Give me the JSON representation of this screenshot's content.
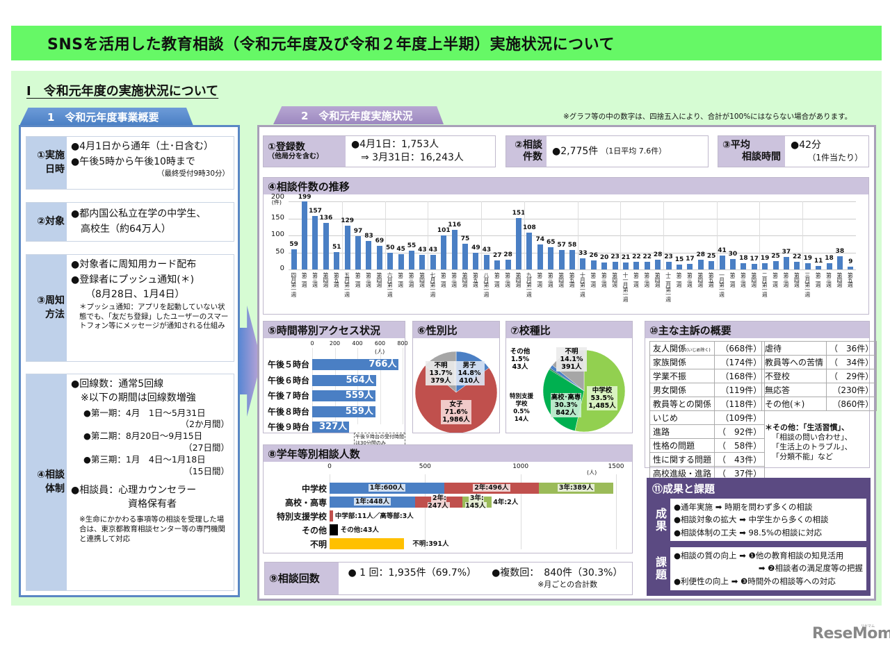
{
  "title": "SNSを活用した教育相談（令和元年度及び令和２年度上半期）実施状況について",
  "section_heading": "Ⅰ　令和元年度の実施状況について",
  "tab1": "1　令和元年度事業概要",
  "tab2": "2　令和元年度実施状況",
  "rounding_note": "※グラフ等の中の数字は、四捨五入により、合計が100%にはならない場合があります。",
  "overview": {
    "rows": [
      {
        "label": "①実施\n日時",
        "lines": [
          "●4月1日から通年（土･日含む）",
          "●午後5時から午後10時まで"
        ],
        "note": "（最終受付9時30分）"
      },
      {
        "label": "②対象",
        "lines": [
          "●都内国公私立在学の中学生、",
          "　高校生（約64万人）"
        ]
      },
      {
        "label": "③周知\n方法",
        "lines": [
          "●対象者に周知用カード配布",
          "●登録者にプッシュ通知(＊)",
          "　　（8月28日、1月4日）"
        ],
        "note": "＊プッシュ通知：アプリを起動していない状態でも、「友だち登録」したユーザーのスマートフォン等にメッセージが通知される仕組み"
      },
      {
        "label": "④相談\n体制",
        "lines": [
          "●回線数：通常5回線",
          "　※以下の期間は回線数増強"
        ],
        "periods": [
          {
            "text": "●第一期：4月　1日～5月31日",
            "dur": "（2か月間）"
          },
          {
            "text": "●第二期：8月20日～9月15日",
            "dur": "（27日間）"
          },
          {
            "text": "●第三期：1月　4日～1月18日",
            "dur": "（15日間）"
          }
        ],
        "counselor": "●相談員：心理カウンセラー",
        "counselor2": "資格保有者",
        "note": "※生命にかかわる事項等の相談を受理した場合は、東京都教育相談センター等の専門機関と連携して対応"
      }
    ]
  },
  "stats": {
    "registrations": {
      "label1": "①登録数",
      "label2": "（他局分を含む）",
      "line1": "●4月1日：1,753人",
      "line2": "　⇒ 3月31日：16,243人"
    },
    "consultations": {
      "label1": "②相談",
      "label2": "件数",
      "value": "●2,775件",
      "sub": "（1日平均 7.6件）"
    },
    "avg_time": {
      "label1": "③平均",
      "label2": "相談時間",
      "value": "●42分",
      "sub": "（1件当たり）"
    }
  },
  "weekly": {
    "title": "④相談件数の推移",
    "unit": "(件)"
  },
  "hourly": {
    "title": "⑤時間帯別アクセス状況",
    "unit": "(人)",
    "note": "午後９時台の受付時間は30分間のみ"
  },
  "gender": {
    "title": "⑥性別比"
  },
  "school": {
    "title": "⑦校種比"
  },
  "grade": {
    "title": "⑧学年等別相談人数",
    "unit": "(人)"
  },
  "count": {
    "title": "⑨相談回数",
    "once": "● 1 回：1,935件（69.7%）",
    "multi": "●複数回：　840件（30.3%）",
    "note": "※月ごとの合計数"
  },
  "complaints": {
    "title": "⑩主な主訴の概要",
    "left": [
      {
        "name": "友人関係",
        "sub": "(いじめ除く)",
        "n": "（668件）"
      },
      {
        "name": "家族関係",
        "n": "（174件）"
      },
      {
        "name": "学業不振",
        "n": "（168件）"
      },
      {
        "name": "男女関係",
        "n": "（119件）"
      },
      {
        "name": "教員等との関係",
        "n": "（118件）"
      },
      {
        "name": "いじめ",
        "n": "（109件）"
      },
      {
        "name": "進路",
        "n": "（　92件）"
      },
      {
        "name": "性格の問題",
        "n": "（　58件）"
      },
      {
        "name": "性に関する問題",
        "n": "（　43件）"
      },
      {
        "name": "高校進級・進路",
        "n": "（　37件）"
      }
    ],
    "right": [
      {
        "name": "虐待",
        "n": "（　36件）"
      },
      {
        "name": "教員等への苦情",
        "n": "（　34件）"
      },
      {
        "name": "不登校",
        "n": "（　29件）"
      },
      {
        "name": "無応答",
        "n": "（230件）"
      },
      {
        "name": "その他(＊)",
        "n": "（860件）"
      }
    ],
    "note": [
      "＊その他：「生活習慣」、",
      "「相談の問い合わせ」、",
      "「生活上のトラブル」、",
      "「分類不能」など"
    ]
  },
  "outcomes": {
    "title": "⑪成果と課題",
    "results_label": "成果",
    "results": [
      "●通年実施 ➡ 時期を問わず多くの相談",
      "●相談対象の拡大 ➡ 中学生から多くの相談",
      "●相談体制の工夫 ➡ 98.5%の相談に対応"
    ],
    "issues_label": "課題",
    "issues": [
      "●相談の質の向上 ➡ ❶他の教育相談の知見活用",
      "➡ ❷相談者の満足度等の把握",
      "●利便性の向上 ➡ ❸時間外の相談等への対応"
    ]
  },
  "logo": "ReseMom",
  "logo_kana": "リセマム",
  "colors": {
    "title_green": "#66f866",
    "bg_green": "#d6fcd3",
    "blue": "#4a7fc4",
    "red": "#c0504d",
    "green": "#9bbb59",
    "lightgreen": "#92d050",
    "darkgreen": "#00b050",
    "gray": "#a6a6a6",
    "yellow": "#ffc000",
    "lavender": "#ccc3dd",
    "purple": "#5b4a82"
  },
  "chart_data": [
    {
      "type": "bar",
      "title": "④相談件数の推移",
      "ylabel": "(件)",
      "ylim": [
        0,
        200
      ],
      "yticks": [
        0,
        50,
        100,
        150,
        200
      ],
      "months": [
        "四月",
        "五月",
        "六月",
        "七月",
        "八月",
        "九月",
        "十月",
        "十一月",
        "十二月",
        "一月",
        "二月",
        "三月"
      ],
      "weeks_per_month": [
        5,
        4,
        4,
        5,
        4,
        5,
        4,
        4,
        5,
        4,
        4,
        5
      ],
      "values": [
        59,
        199,
        157,
        136,
        51,
        129,
        97,
        83,
        69,
        50,
        45,
        55,
        43,
        43,
        101,
        116,
        75,
        49,
        43,
        27,
        28,
        151,
        108,
        74,
        65,
        57,
        58,
        33,
        26,
        20,
        23,
        21,
        22,
        22,
        28,
        23,
        15,
        17,
        28,
        25,
        41,
        30,
        18,
        17,
        19,
        25,
        37,
        22,
        19,
        11,
        18,
        38,
        9
      ],
      "week_labels": [
        "第一週",
        "第二週",
        "第三週",
        "第四週",
        "第五週"
      ]
    },
    {
      "type": "bar",
      "orientation": "horizontal",
      "title": "⑤時間帯別アクセス状況",
      "xlabel": "(人)",
      "xlim": [
        0,
        800
      ],
      "xticks": [
        0,
        200,
        400,
        600,
        800
      ],
      "categories": [
        "午後５時台",
        "午後６時台",
        "午後７時台",
        "午後８時台",
        "午後９時台"
      ],
      "values": [
        766,
        564,
        559,
        559,
        327
      ],
      "value_labels": [
        "766人",
        "564人",
        "559人",
        "559人",
        "327人"
      ],
      "annotation": "午後９時台の受付時間は30分間のみ"
    },
    {
      "type": "pie",
      "title": "⑥性別比",
      "slices": [
        {
          "label": "男子",
          "pct": 14.8,
          "count": 410,
          "color": "#4a7fc4",
          "text": [
            "男子",
            "14.8%",
            "410人"
          ]
        },
        {
          "label": "女子",
          "pct": 71.6,
          "count": 1986,
          "color": "#c0504d",
          "text": [
            "女子",
            "71.6%",
            "1,986人"
          ]
        },
        {
          "label": "不明",
          "pct": 13.7,
          "count": 379,
          "color": "#a6a6a6",
          "text": [
            "不明",
            "13.7%",
            "379人"
          ]
        }
      ]
    },
    {
      "type": "pie",
      "title": "⑦校種比",
      "slices": [
        {
          "label": "中学校",
          "pct": 53.5,
          "count": 1485,
          "color": "#92d050",
          "text": [
            "中学校",
            "53.5%",
            "1,485人"
          ]
        },
        {
          "label": "高校・高専",
          "pct": 30.3,
          "count": 842,
          "color": "#00b050",
          "text": [
            "高校･高専",
            "30.3%",
            "842人"
          ]
        },
        {
          "label": "特別支援学校",
          "pct": 0.5,
          "count": 14,
          "color": "#1f6e3a",
          "text": [
            "特別支援",
            "学校",
            "0.5%",
            "14人"
          ]
        },
        {
          "label": "その他",
          "pct": 1.5,
          "count": 43,
          "color": "#4a7fc4",
          "text": [
            "その他",
            "1.5%",
            "43人"
          ]
        },
        {
          "label": "不明",
          "pct": 14.1,
          "count": 391,
          "color": "#a6a6a6",
          "text": [
            "不明",
            "14.1%",
            "391人"
          ]
        }
      ]
    },
    {
      "type": "bar",
      "orientation": "horizontal",
      "stacked": true,
      "title": "⑧学年等別相談人数",
      "xlabel": "(人)",
      "xlim": [
        0,
        1500
      ],
      "xticks": [
        0,
        500,
        1000,
        1500
      ],
      "categories": [
        "中学校",
        "高校・高専",
        "特別支援学校",
        "その他",
        "不明"
      ],
      "rows": [
        {
          "category": "中学校",
          "segments": [
            {
              "name": "1年",
              "value": 600,
              "color": "#4a7fc4",
              "label": "1年:600人"
            },
            {
              "name": "2年",
              "value": 496,
              "color": "#c0504d",
              "label": "2年:496人"
            },
            {
              "name": "3年",
              "value": 389,
              "color": "#9bbb59",
              "label": "3年:389人"
            }
          ]
        },
        {
          "category": "高校・高専",
          "segments": [
            {
              "name": "1年",
              "value": 448,
              "color": "#4a7fc4",
              "label": "1年:448人"
            },
            {
              "name": "2年",
              "value": 247,
              "color": "#c0504d",
              "label": "2年:\n247人"
            },
            {
              "name": "3年",
              "value": 145,
              "color": "#9bbb59",
              "label": "3年:\n145人"
            },
            {
              "name": "4年",
              "value": 2,
              "color": "#9bbb59",
              "label": "4年:2人"
            }
          ]
        },
        {
          "category": "特別支援学校",
          "segments": [
            {
              "name": "中学部",
              "value": 11,
              "color": "#c0504d"
            },
            {
              "name": "高等部",
              "value": 3,
              "color": "#c0504d"
            }
          ],
          "label": "中学部:11人／高等部:3人"
        },
        {
          "category": "その他",
          "segments": [
            {
              "name": "その他",
              "value": 43,
              "color": "#000000"
            }
          ],
          "label": "その他:43人"
        },
        {
          "category": "不明",
          "segments": [
            {
              "name": "不明",
              "value": 391,
              "color": "#ffc000"
            }
          ],
          "label": "不明:391人"
        }
      ]
    }
  ]
}
